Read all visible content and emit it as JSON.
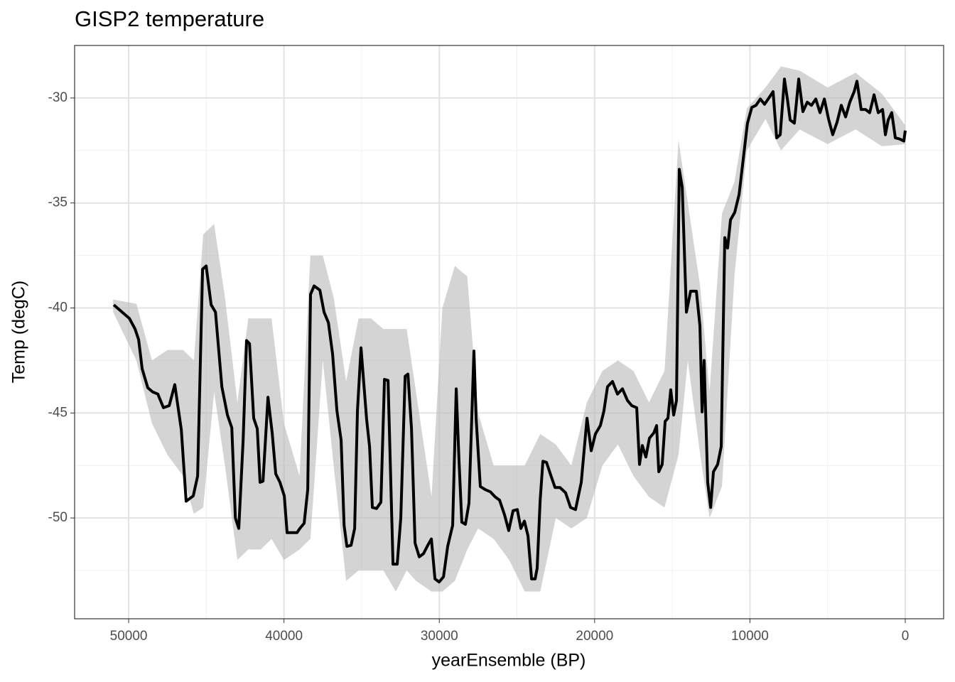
{
  "chart_data": {
    "type": "line",
    "title": "GISP2 temperature",
    "x_label": "yearEnsemble (BP)",
    "y_label": "Temp (degC)",
    "xlim": [
      53480,
      -2470
    ],
    "ylim": [
      -54.8,
      -27.5
    ],
    "xticks": [
      50000,
      40000,
      30000,
      20000,
      10000,
      0
    ],
    "yticks": [
      -30,
      -35,
      -40,
      -45,
      -50
    ],
    "xminor": [
      45000,
      35000,
      25000,
      15000,
      5000
    ],
    "yminor": [
      -32.5,
      -37.5,
      -42.5,
      -47.5,
      -52.5
    ],
    "grid": true,
    "x": [
      50960,
      49950,
      49590,
      49360,
      49130,
      48770,
      48450,
      48120,
      47760,
      47390,
      47030,
      46610,
      46300,
      45840,
      45560,
      45240,
      45010,
      44690,
      44410,
      44000,
      43640,
      43360,
      43130,
      42910,
      42630,
      42410,
      42220,
      41950,
      41720,
      41540,
      41350,
      41030,
      40760,
      40530,
      40260,
      39980,
      39800,
      39160,
      38980,
      38700,
      38470,
      38290,
      38060,
      37690,
      37420,
      37140,
      36870,
      36590,
      36320,
      36130,
      35950,
      35680,
      35450,
      35270,
      35040,
      34680,
      34490,
      34310,
      34040,
      33760,
      33530,
      33300,
      32980,
      32710,
      32480,
      32200,
      32020,
      31790,
      31560,
      31290,
      31020,
      30740,
      30510,
      30280,
      30010,
      29730,
      29460,
      29140,
      28910,
      28730,
      28550,
      28320,
      28090,
      27770,
      27630,
      27360,
      27040,
      26720,
      26400,
      26120,
      25800,
      25530,
      25250,
      24980,
      24750,
      24520,
      24290,
      24060,
      23830,
      23700,
      23510,
      23330,
      23100,
      22830,
      22550,
      22230,
      21870,
      21550,
      21230,
      20860,
      20490,
      20220,
      19950,
      19630,
      19400,
      19170,
      18850,
      18530,
      18210,
      17890,
      17610,
      17290,
      17110,
      16930,
      16700,
      16470,
      16190,
      16010,
      15870,
      15650,
      15460,
      15280,
      15100,
      14910,
      14730,
      14550,
      14360,
      14090,
      13820,
      13450,
      13220,
      13080,
      12950,
      12720,
      12530,
      12350,
      12080,
      11850,
      11620,
      11440,
      11250,
      10980,
      10700,
      10430,
      10160,
      9880,
      9610,
      9330,
      9060,
      8780,
      8510,
      8280,
      8050,
      7780,
      7590,
      7410,
      7140,
      6860,
      6590,
      6310,
      6040,
      5760,
      5490,
      5210,
      4940,
      4670,
      4390,
      4120,
      3840,
      3570,
      3290,
      3110,
      2840,
      2560,
      2290,
      2010,
      1740,
      1460,
      1280,
      1100,
      870,
      640,
      370,
      90,
      0
    ],
    "series": [
      {
        "color": "#000000",
        "values": [
          -39.85,
          -40.5,
          -41.0,
          -41.5,
          -42.9,
          -43.8,
          -44.0,
          -44.1,
          -44.75,
          -44.65,
          -43.65,
          -45.8,
          -49.2,
          -48.95,
          -48.0,
          -38.15,
          -38.0,
          -39.85,
          -40.2,
          -43.75,
          -45.1,
          -45.7,
          -50.0,
          -50.5,
          -46.3,
          -41.55,
          -41.7,
          -45.25,
          -45.75,
          -48.3,
          -48.25,
          -44.25,
          -45.95,
          -47.9,
          -48.3,
          -48.95,
          -50.7,
          -50.7,
          -50.5,
          -50.25,
          -48.65,
          -39.35,
          -38.95,
          -39.15,
          -40.2,
          -40.7,
          -42.2,
          -44.9,
          -46.3,
          -50.35,
          -51.35,
          -51.3,
          -50.5,
          -44.9,
          -41.9,
          -45.3,
          -46.6,
          -49.5,
          -49.55,
          -49.25,
          -43.4,
          -43.45,
          -52.2,
          -52.2,
          -50.0,
          -43.25,
          -43.15,
          -45.75,
          -51.2,
          -51.85,
          -51.7,
          -51.3,
          -51.0,
          -52.9,
          -53.05,
          -52.8,
          -51.35,
          -50.35,
          -43.85,
          -47.3,
          -50.2,
          -50.3,
          -49.3,
          -42.05,
          -45.25,
          -48.5,
          -48.65,
          -48.75,
          -49.0,
          -49.15,
          -49.85,
          -50.6,
          -49.65,
          -49.6,
          -50.5,
          -50.15,
          -50.85,
          -52.9,
          -52.9,
          -52.4,
          -49.2,
          -47.3,
          -47.35,
          -47.95,
          -48.55,
          -48.55,
          -48.8,
          -49.5,
          -49.6,
          -48.3,
          -45.25,
          -46.8,
          -46.0,
          -45.6,
          -44.9,
          -43.75,
          -43.5,
          -44.1,
          -43.85,
          -44.4,
          -44.65,
          -44.75,
          -47.45,
          -46.55,
          -47.1,
          -46.2,
          -45.95,
          -45.6,
          -47.8,
          -47.45,
          -45.4,
          -45.25,
          -43.9,
          -45.1,
          -44.4,
          -33.4,
          -34.25,
          -40.2,
          -39.2,
          -39.2,
          -40.85,
          -44.95,
          -42.5,
          -48.3,
          -49.5,
          -47.8,
          -47.45,
          -46.6,
          -36.65,
          -37.15,
          -35.8,
          -35.45,
          -34.6,
          -32.9,
          -31.2,
          -30.45,
          -30.35,
          -30.05,
          -30.3,
          -30.0,
          -29.7,
          -31.9,
          -31.75,
          -29.1,
          -30.05,
          -31.05,
          -31.2,
          -29.1,
          -30.65,
          -30.2,
          -30.35,
          -30.05,
          -30.7,
          -30.05,
          -31.0,
          -31.75,
          -31.15,
          -30.35,
          -30.9,
          -30.2,
          -29.7,
          -29.2,
          -30.55,
          -30.55,
          -30.7,
          -29.85,
          -30.7,
          -30.55,
          -31.75,
          -31.05,
          -30.7,
          -31.9,
          -31.95,
          -32.05,
          -31.55
        ]
      }
    ],
    "band": {
      "color": "#b8b8b8",
      "x": [
        51000,
        49500,
        48500,
        47500,
        46500,
        45800,
        45200,
        44500,
        43800,
        43000,
        42300,
        41500,
        40800,
        40000,
        39000,
        38300,
        37500,
        36800,
        36000,
        35200,
        34400,
        33600,
        32800,
        32100,
        31500,
        30500,
        29800,
        29000,
        28200,
        27500,
        26500,
        25500,
        24500,
        23500,
        22500,
        21500,
        20500,
        19500,
        18500,
        17500,
        16500,
        15500,
        14600,
        14000,
        13200,
        12600,
        11800,
        11000,
        10200,
        9000,
        8000,
        6800,
        5000,
        3200,
        1500,
        0
      ],
      "lower": [
        -40.2,
        -42.5,
        -45.5,
        -47.0,
        -48.0,
        -49.8,
        -49.5,
        -44.0,
        -47.5,
        -52.0,
        -51.5,
        -51.5,
        -51.0,
        -52.0,
        -51.5,
        -51.0,
        -42.5,
        -47.5,
        -53.0,
        -52.5,
        -52.5,
        -52.5,
        -53.5,
        -52.5,
        -53.0,
        -53.5,
        -53.5,
        -53.0,
        -51.5,
        -50.5,
        -51.0,
        -52.0,
        -53.5,
        -53.5,
        -50.0,
        -50.5,
        -50.0,
        -47.5,
        -46.5,
        -48.0,
        -49.0,
        -49.5,
        -47.0,
        -42.5,
        -47.0,
        -50.0,
        -48.5,
        -38.5,
        -32.5,
        -31.0,
        -32.5,
        -31.5,
        -32.2,
        -31.5,
        -32.3,
        -32.2
      ],
      "upper": [
        -39.6,
        -39.8,
        -42.5,
        -42.0,
        -42.0,
        -42.5,
        -36.5,
        -36.0,
        -39.5,
        -44.5,
        -40.5,
        -40.5,
        -40.5,
        -45.5,
        -48.0,
        -37.5,
        -37.5,
        -39.5,
        -43.5,
        -40.5,
        -40.5,
        -41.0,
        -41.0,
        -41.0,
        -44.0,
        -49.0,
        -40.0,
        -38.0,
        -38.5,
        -45.0,
        -47.5,
        -47.5,
        -47.5,
        -46.0,
        -46.5,
        -47.5,
        -44.5,
        -43.0,
        -42.5,
        -43.0,
        -44.5,
        -43.0,
        -32.0,
        -35.0,
        -39.0,
        -44.0,
        -35.5,
        -34.0,
        -30.5,
        -29.5,
        -28.5,
        -28.7,
        -29.5,
        -28.8,
        -29.8,
        -31.3
      ]
    }
  }
}
